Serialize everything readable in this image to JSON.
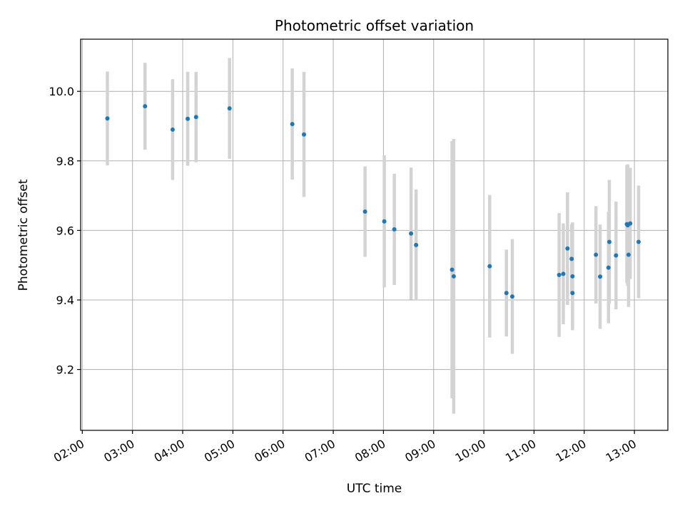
{
  "chart_data": {
    "type": "scatter",
    "title": "Photometric offset variation",
    "xlabel": "UTC time",
    "ylabel": "Photometric offset",
    "x_axis": "time",
    "xlim": [
      "01:58",
      "13:40"
    ],
    "ylim": [
      9.025,
      10.15
    ],
    "xticks": [
      "02:00",
      "03:00",
      "04:00",
      "05:00",
      "06:00",
      "07:00",
      "08:00",
      "09:00",
      "10:00",
      "11:00",
      "12:00",
      "13:00"
    ],
    "yticks": [
      9.2,
      9.4,
      9.6,
      9.8,
      10.0
    ],
    "ytick_labels": [
      "9.2",
      "9.4",
      "9.6",
      "9.8",
      "10.0"
    ],
    "grid": true,
    "legend": "none",
    "point_color": "#1f77b4",
    "errorbar_color": "#d3d3d3",
    "points": [
      {
        "x": "02:30",
        "y": 9.922,
        "yerr": 0.135
      },
      {
        "x": "03:15",
        "y": 9.957,
        "yerr": 0.125
      },
      {
        "x": "03:48",
        "y": 9.89,
        "yerr": 0.145
      },
      {
        "x": "04:06",
        "y": 9.921,
        "yerr": 0.135
      },
      {
        "x": "04:16",
        "y": 9.926,
        "yerr": 0.13
      },
      {
        "x": "04:56",
        "y": 9.951,
        "yerr": 0.145
      },
      {
        "x": "06:11",
        "y": 9.906,
        "yerr": 0.16
      },
      {
        "x": "06:25",
        "y": 9.876,
        "yerr": 0.18
      },
      {
        "x": "07:38",
        "y": 9.654,
        "yerr": 0.13
      },
      {
        "x": "08:01",
        "y": 9.626,
        "yerr": 0.19
      },
      {
        "x": "08:13",
        "y": 9.603,
        "yerr": 0.16
      },
      {
        "x": "08:33",
        "y": 9.591,
        "yerr": 0.19
      },
      {
        "x": "08:39",
        "y": 9.558,
        "yerr": 0.16
      },
      {
        "x": "09:22",
        "y": 9.487,
        "yerr": 0.37
      },
      {
        "x": "09:24",
        "y": 9.468,
        "yerr": 0.395
      },
      {
        "x": "10:07",
        "y": 9.497,
        "yerr": 0.205
      },
      {
        "x": "10:27",
        "y": 9.42,
        "yerr": 0.125
      },
      {
        "x": "10:34",
        "y": 9.41,
        "yerr": 0.165
      },
      {
        "x": "11:30",
        "y": 9.472,
        "yerr": 0.178
      },
      {
        "x": "11:35",
        "y": 9.475,
        "yerr": 0.145
      },
      {
        "x": "11:40",
        "y": 9.548,
        "yerr": 0.162
      },
      {
        "x": "11:45",
        "y": 9.518,
        "yerr": 0.1
      },
      {
        "x": "11:46",
        "y": 9.468,
        "yerr": 0.155
      },
      {
        "x": "11:46",
        "y": 9.42,
        "yerr": 0.1
      },
      {
        "x": "12:14",
        "y": 9.53,
        "yerr": 0.14
      },
      {
        "x": "12:19",
        "y": 9.467,
        "yerr": 0.15
      },
      {
        "x": "12:29",
        "y": 9.493,
        "yerr": 0.16
      },
      {
        "x": "12:30",
        "y": 9.567,
        "yerr": 0.178
      },
      {
        "x": "12:38",
        "y": 9.528,
        "yerr": 0.155
      },
      {
        "x": "12:51",
        "y": 9.618,
        "yerr": 0.17
      },
      {
        "x": "12:52",
        "y": 9.615,
        "yerr": 0.175
      },
      {
        "x": "12:53",
        "y": 9.53,
        "yerr": 0.15
      },
      {
        "x": "12:55",
        "y": 9.62,
        "yerr": 0.16
      },
      {
        "x": "13:05",
        "y": 9.567,
        "yerr": 0.162
      }
    ]
  }
}
